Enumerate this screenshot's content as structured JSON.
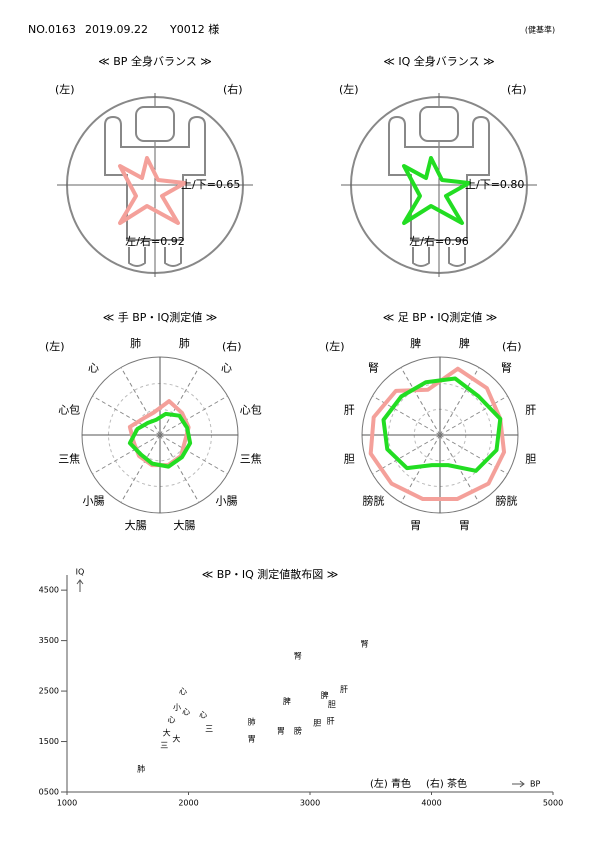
{
  "header": {
    "no": "NO.0163",
    "date": "2019.09.22",
    "patient": "Y0012 様",
    "note": "(健基準)"
  },
  "chart_data": [
    {
      "type": "balance",
      "title": "≪ BP 全身バランス ≫",
      "left": "(左)",
      "right": "(右)",
      "ud_label": "上/下=0.65",
      "lr_label": "左/右=0.92",
      "color": "#f4a09a"
    },
    {
      "type": "balance",
      "title": "≪ IQ 全身バランス ≫",
      "left": "(左)",
      "right": "(右)",
      "ud_label": "上/下=0.80",
      "lr_label": "左/右=0.96",
      "color": "#22dd22"
    },
    {
      "type": "radar",
      "title": "≪ 手 BP・IQ測定値 ≫",
      "left": "(左)",
      "right": "(右)",
      "categories": [
        "肺",
        "心",
        "心包",
        "三焦",
        "小腸",
        "大腸",
        "大腸",
        "小腸",
        "三焦",
        "心包",
        "心",
        "肺"
      ],
      "right_color": "#8b1a1a",
      "left_color": "#0000cc",
      "rlim": [
        0,
        100
      ],
      "series": [
        {
          "color": "#f4a09a",
          "values": [
            45,
            40,
            38,
            33,
            38,
            40,
            40,
            38,
            35,
            40,
            30,
            30
          ]
        },
        {
          "color": "#22dd22",
          "values": [
            28,
            35,
            36,
            40,
            40,
            42,
            38,
            35,
            40,
            30,
            22,
            20
          ]
        }
      ]
    },
    {
      "type": "radar",
      "title": "≪ 足 BP・IQ測定値 ≫",
      "left": "(左)",
      "right": "(右)",
      "categories": [
        "脾",
        "腎",
        "肝",
        "胆",
        "膀胱",
        "胃",
        "胃",
        "膀胱",
        "胆",
        "肝",
        "腎",
        "脾"
      ],
      "right_color": "#8b1a1a",
      "left_color": "#0000cc",
      "rlim": [
        0,
        100
      ],
      "series": [
        {
          "color": "#f4a09a",
          "values": [
            88,
            85,
            80,
            85,
            88,
            85,
            85,
            88,
            92,
            88,
            80,
            60
          ]
        },
        {
          "color": "#22dd22",
          "values": [
            75,
            70,
            80,
            75,
            65,
            40,
            40,
            60,
            70,
            75,
            70,
            70
          ]
        }
      ]
    },
    {
      "type": "scatter",
      "title": "≪ BP・IQ 測定値散布図 ≫",
      "xlabel": "BP",
      "ylabel": "IQ",
      "xlim": [
        1000,
        5000
      ],
      "ylim": [
        500,
        4800
      ],
      "xticks": [
        1000,
        2000,
        3000,
        4000,
        5000
      ],
      "yticks": [
        {
          "value": 500,
          "label": "0500"
        },
        1500,
        2500,
        3500,
        4500
      ],
      "series": [
        {
          "name": "(左) 青色",
          "color": "#0000cc",
          "labels": [
            "肺",
            "三",
            "大",
            "心",
            "心",
            "胃",
            "脾",
            "腎",
            "肝",
            "胆"
          ],
          "x": [
            1610,
            1800,
            1820,
            1860,
            1980,
            2520,
            2810,
            2900,
            3280,
            3180
          ],
          "y": [
            960,
            1420,
            1670,
            1930,
            2090,
            1550,
            2290,
            3190,
            2530,
            2230
          ]
        },
        {
          "name": "(右) 茶色",
          "color": "#8b1a1a",
          "labels": [
            "心",
            "小",
            "心",
            "大",
            "三",
            "肺",
            "胃",
            "膀",
            "胆",
            "肝",
            "脾",
            "腎"
          ],
          "x": [
            1955,
            1905,
            2120,
            1900,
            2170,
            2520,
            2760,
            2900,
            3060,
            3170,
            3120,
            3450
          ],
          "y": [
            2490,
            2170,
            2030,
            1550,
            1750,
            1890,
            1710,
            1710,
            1870,
            1910,
            2410,
            3430
          ]
        }
      ]
    }
  ]
}
